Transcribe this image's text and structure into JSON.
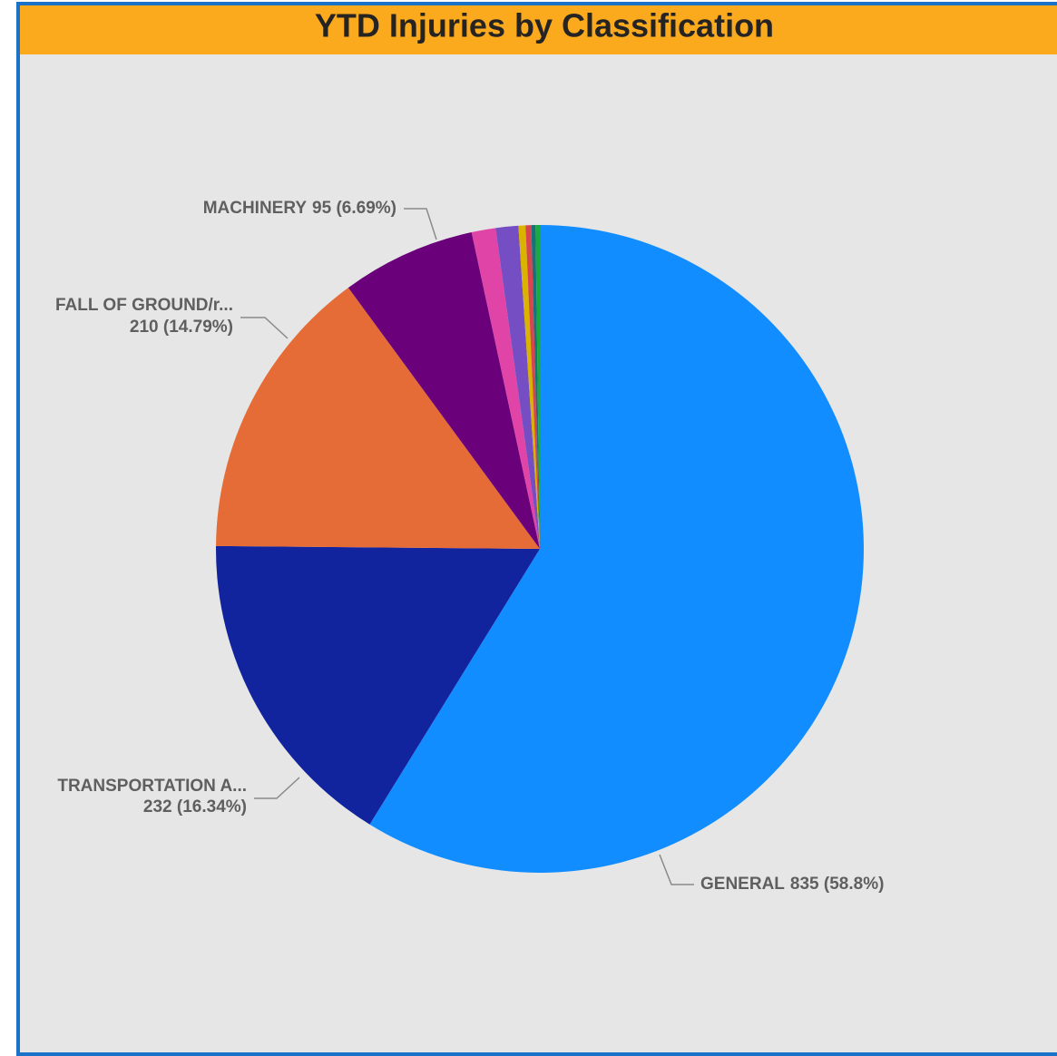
{
  "chart_data": {
    "type": "pie",
    "title": "YTD Injuries by Classification",
    "categories": [
      "GENERAL",
      "TRANSPORTATION A...",
      "FALL OF GROUND/r...",
      "MACHINERY",
      null,
      null,
      null,
      null,
      null,
      null
    ],
    "values": [
      835,
      232,
      210,
      95,
      17,
      16,
      5,
      4,
      3,
      3
    ],
    "value_labels": [
      "835 (58.8%)",
      "232 (16.34%)",
      "210 (14.79%)",
      "95 (6.69%)",
      null,
      null,
      null,
      null,
      null,
      null
    ],
    "colors": [
      "#118dff",
      "#12239e",
      "#e66c37",
      "#6b007b",
      "#e044a7",
      "#744ec2",
      "#d9b300",
      "#d64550",
      "#197278",
      "#1aab40"
    ]
  }
}
